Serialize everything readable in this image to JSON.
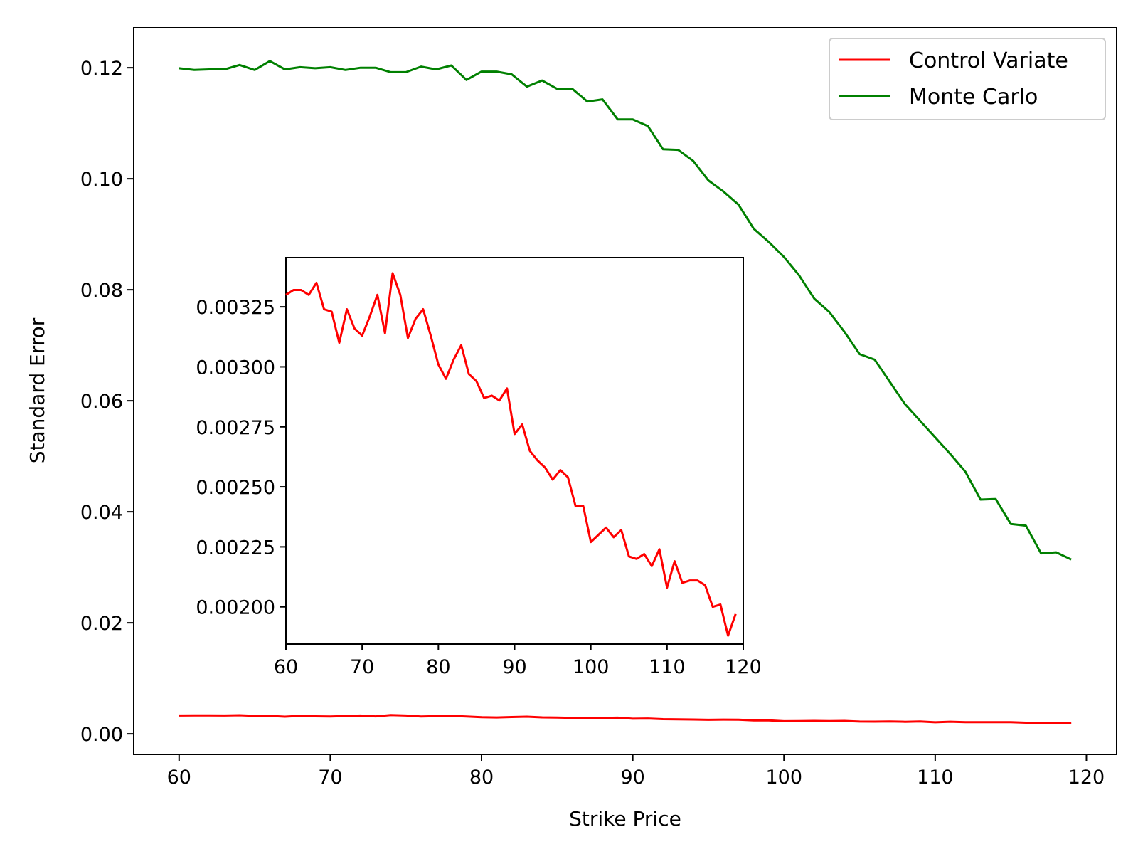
{
  "chart_data": [
    {
      "type": "line",
      "title": "",
      "xlabel": "Strike Price",
      "ylabel": "Standard Error",
      "xlim": [
        57,
        122
      ],
      "ylim": [
        -0.0037,
        0.1272
      ],
      "xticks": [
        60,
        70,
        80,
        90,
        100,
        110,
        120
      ],
      "yticks": [
        0.0,
        0.02,
        0.04,
        0.06,
        0.08,
        0.1,
        0.12
      ],
      "xtick_labels": [
        "60",
        "70",
        "80",
        "90",
        "100",
        "110",
        "120"
      ],
      "ytick_labels": [
        "0.00",
        "0.02",
        "0.04",
        "0.06",
        "0.08",
        "0.10",
        "0.12"
      ],
      "grid": false,
      "legend_position": "top-right",
      "series": [
        {
          "name": "Control Variate",
          "color": "#ff0000",
          "x": [
            60,
            61,
            62,
            63,
            64,
            65,
            66,
            67,
            68,
            69,
            70,
            71,
            72,
            73,
            74,
            75,
            76,
            77,
            78,
            79,
            80,
            81,
            82,
            83,
            84,
            85,
            86,
            87,
            88,
            89,
            90,
            91,
            92,
            93,
            94,
            95,
            96,
            97,
            98,
            99,
            100,
            101,
            102,
            103,
            104,
            105,
            106,
            107,
            108,
            109,
            110,
            111,
            112,
            113,
            114,
            115,
            116,
            117,
            118,
            119
          ],
          "y": [
            0.0033,
            0.00332,
            0.00332,
            0.0033,
            0.00335,
            0.00324,
            0.00323,
            0.0031,
            0.00324,
            0.00316,
            0.00313,
            0.00321,
            0.0033,
            0.00314,
            0.00339,
            0.0033,
            0.00312,
            0.0032,
            0.00324,
            0.00313,
            0.00301,
            0.00295,
            0.00303,
            0.00309,
            0.00297,
            0.00294,
            0.00287,
            0.00288,
            0.00286,
            0.00291,
            0.00272,
            0.00276,
            0.00265,
            0.00261,
            0.00258,
            0.00253,
            0.00257,
            0.00254,
            0.00242,
            0.00242,
            0.00227,
            0.0023,
            0.00233,
            0.00229,
            0.00232,
            0.00221,
            0.0022,
            0.00222,
            0.00217,
            0.00224,
            0.00208,
            0.00219,
            0.0021,
            0.00211,
            0.00211,
            0.00209,
            0.002,
            0.00201,
            0.00188,
            0.00197
          ]
        },
        {
          "name": "Monte Carlo",
          "color": "#008000",
          "x": [
            60,
            61,
            62,
            63,
            64,
            65,
            66,
            67,
            68,
            69,
            70,
            71,
            72,
            73,
            74,
            75,
            76,
            77,
            78,
            79,
            80,
            81,
            82,
            83,
            84,
            85,
            86,
            87,
            88,
            89,
            90,
            91,
            92,
            93,
            94,
            95,
            96,
            97,
            98,
            99,
            100,
            101,
            102,
            103,
            104,
            105,
            106,
            107,
            108,
            109,
            110,
            111,
            112,
            113,
            114,
            115,
            116,
            117,
            118,
            119
          ],
          "y": [
            0.1199,
            0.1196,
            0.1197,
            0.1197,
            0.1205,
            0.1196,
            0.1212,
            0.1197,
            0.1201,
            0.1199,
            0.1201,
            0.1196,
            0.12,
            0.12,
            0.1192,
            0.1192,
            0.1202,
            0.1197,
            0.1204,
            0.1178,
            0.1193,
            0.1193,
            0.1188,
            0.1166,
            0.1177,
            0.1162,
            0.1162,
            0.1139,
            0.1143,
            0.1107,
            0.1107,
            0.1095,
            0.1053,
            0.1052,
            0.1032,
            0.0997,
            0.0977,
            0.0953,
            0.091,
            0.0886,
            0.0859,
            0.0826,
            0.0784,
            0.076,
            0.0724,
            0.0684,
            0.0674,
            0.0634,
            0.0594,
            0.0564,
            0.0534,
            0.0504,
            0.0472,
            0.0422,
            0.0423,
            0.0378,
            0.0375,
            0.0325,
            0.0327,
            0.0314
          ]
        }
      ]
    },
    {
      "type": "line",
      "title": "",
      "xlabel": "",
      "ylabel": "",
      "xlim": [
        60,
        120
      ],
      "ylim": [
        0.001845,
        0.003455
      ],
      "xticks": [
        60,
        70,
        80,
        90,
        100,
        110,
        120
      ],
      "yticks": [
        0.002,
        0.00225,
        0.0025,
        0.00275,
        0.003,
        0.00325
      ],
      "xtick_labels": [
        "60",
        "70",
        "80",
        "90",
        "100",
        "110",
        "120"
      ],
      "ytick_labels": [
        "0.00200",
        "0.00225",
        "0.00250",
        "0.00275",
        "0.00300",
        "0.00325"
      ],
      "grid": false,
      "series": [
        {
          "color": "#ff0000",
          "x": [
            60,
            61,
            62,
            63,
            64,
            65,
            66,
            67,
            68,
            69,
            70,
            71,
            72,
            73,
            74,
            75,
            76,
            77,
            78,
            79,
            80,
            81,
            82,
            83,
            84,
            85,
            86,
            87,
            88,
            89,
            90,
            91,
            92,
            93,
            94,
            95,
            96,
            97,
            98,
            99,
            100,
            101,
            102,
            103,
            104,
            105,
            106,
            107,
            108,
            109,
            110,
            111,
            112,
            113,
            114,
            115,
            116,
            117,
            118,
            119
          ],
          "y": [
            0.0033,
            0.00332,
            0.00332,
            0.0033,
            0.00335,
            0.00324,
            0.00323,
            0.0031,
            0.00324,
            0.00316,
            0.00313,
            0.00321,
            0.0033,
            0.00314,
            0.00339,
            0.0033,
            0.00312,
            0.0032,
            0.00324,
            0.00313,
            0.00301,
            0.00295,
            0.00303,
            0.00309,
            0.00297,
            0.00294,
            0.00287,
            0.00288,
            0.00286,
            0.00291,
            0.00272,
            0.00276,
            0.00265,
            0.00261,
            0.00258,
            0.00253,
            0.00257,
            0.00254,
            0.00242,
            0.00242,
            0.00227,
            0.0023,
            0.00233,
            0.00229,
            0.00232,
            0.00221,
            0.0022,
            0.00222,
            0.00217,
            0.00224,
            0.00208,
            0.00219,
            0.0021,
            0.00211,
            0.00211,
            0.00209,
            0.002,
            0.00201,
            0.00188,
            0.00197
          ]
        }
      ]
    }
  ]
}
